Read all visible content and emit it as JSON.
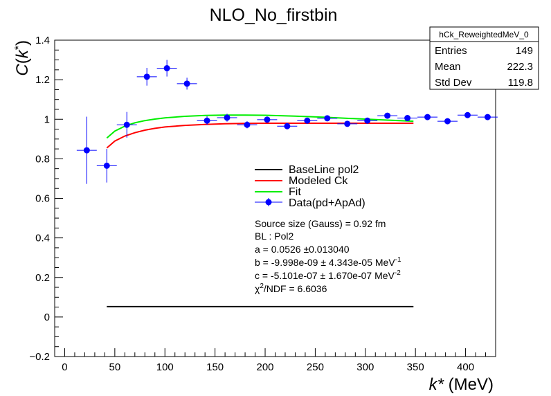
{
  "chart_data": {
    "type": "scatter",
    "title": "NLO_No_firstbin",
    "xlabel": {
      "italic": "k*",
      "rest": " (MeV)"
    },
    "ylabel": {
      "italic": "C",
      "open": "(",
      "italic2": "k",
      "sup": "*",
      "close": ")"
    },
    "xlim": [
      -10,
      430
    ],
    "ylim": [
      -0.2,
      1.4
    ],
    "x_ticks": [
      0,
      50,
      100,
      150,
      200,
      250,
      300,
      350,
      400
    ],
    "y_ticks": [
      -0.2,
      0,
      0.2,
      0.4,
      0.6,
      0.8,
      1,
      1.2,
      1.4
    ],
    "x_tick_labels": [
      "0",
      "50",
      "100",
      "150",
      "200",
      "250",
      "300",
      "350",
      "400"
    ],
    "y_tick_labels": [
      "−0.2",
      "0",
      "0.2",
      "0.4",
      "0.6",
      "0.8",
      "1",
      "1.2",
      "1.4"
    ],
    "grid": false,
    "data_points": [
      {
        "x": 22,
        "y": 0.843,
        "xerr": 10,
        "yerr": 0.17
      },
      {
        "x": 42,
        "y": 0.765,
        "xerr": 10,
        "yerr": 0.085
      },
      {
        "x": 62,
        "y": 0.972,
        "xerr": 10,
        "yerr": 0.065
      },
      {
        "x": 82,
        "y": 1.215,
        "xerr": 10,
        "yerr": 0.045
      },
      {
        "x": 102,
        "y": 1.258,
        "xerr": 10,
        "yerr": 0.042
      },
      {
        "x": 122,
        "y": 1.18,
        "xerr": 10,
        "yerr": 0.03
      },
      {
        "x": 142,
        "y": 0.993,
        "xerr": 10,
        "yerr": 0.022
      },
      {
        "x": 162,
        "y": 1.008,
        "xerr": 10,
        "yerr": 0.02
      },
      {
        "x": 182,
        "y": 0.972,
        "xerr": 10,
        "yerr": 0.018
      },
      {
        "x": 202,
        "y": 0.998,
        "xerr": 10,
        "yerr": 0.016
      },
      {
        "x": 222,
        "y": 0.965,
        "xerr": 10,
        "yerr": 0.016
      },
      {
        "x": 242,
        "y": 0.993,
        "xerr": 10,
        "yerr": 0.014
      },
      {
        "x": 262,
        "y": 1.005,
        "xerr": 10,
        "yerr": 0.013
      },
      {
        "x": 282,
        "y": 0.977,
        "xerr": 10,
        "yerr": 0.012
      },
      {
        "x": 302,
        "y": 0.993,
        "xerr": 10,
        "yerr": 0.012
      },
      {
        "x": 322,
        "y": 1.018,
        "xerr": 10,
        "yerr": 0.011
      },
      {
        "x": 342,
        "y": 1.006,
        "xerr": 10,
        "yerr": 0.011
      },
      {
        "x": 362,
        "y": 1.011,
        "xerr": 10,
        "yerr": 0.01
      },
      {
        "x": 382,
        "y": 0.99,
        "xerr": 10,
        "yerr": 0.01
      },
      {
        "x": 402,
        "y": 1.021,
        "xerr": 10,
        "yerr": 0.01
      },
      {
        "x": 422,
        "y": 1.011,
        "xerr": 10,
        "yerr": 0.01
      }
    ],
    "series": [
      {
        "name": "BaseLine pol2",
        "color": "#000000",
        "x": [
          42,
          100,
          150,
          200,
          250,
          300,
          348
        ],
        "y": [
          0.0526,
          0.0526,
          0.0526,
          0.0526,
          0.0526,
          0.0526,
          0.0526
        ]
      },
      {
        "name": "Modeled Ck",
        "color": "#ff0000",
        "x": [
          42,
          50,
          60,
          70,
          80,
          90,
          100,
          120,
          140,
          160,
          180,
          200,
          230,
          260,
          290,
          320,
          348
        ],
        "y": [
          0.855,
          0.89,
          0.915,
          0.932,
          0.945,
          0.954,
          0.961,
          0.969,
          0.974,
          0.977,
          0.979,
          0.98,
          0.98,
          0.98,
          0.98,
          0.98,
          0.98
        ]
      },
      {
        "name": "Fit",
        "color": "#00ee00",
        "x": [
          42,
          50,
          60,
          70,
          80,
          90,
          100,
          120,
          140,
          160,
          180,
          200,
          230,
          260,
          290,
          320,
          348
        ],
        "y": [
          0.905,
          0.94,
          0.965,
          0.982,
          0.993,
          1.001,
          1.007,
          1.015,
          1.019,
          1.021,
          1.021,
          1.02,
          1.016,
          1.01,
          1.003,
          0.996,
          0.99
        ]
      }
    ],
    "legend": {
      "placement": "center",
      "entries": [
        {
          "label": "BaseLine pol2",
          "style": "line",
          "color": "#000000"
        },
        {
          "label": "Modeled Ck",
          "style": "line",
          "color": "#ff0000"
        },
        {
          "label": "Fit",
          "style": "line",
          "color": "#00ee00"
        },
        {
          "label": "Data(pd+ApAd)",
          "style": "marker",
          "color": "#0000ff"
        }
      ]
    },
    "annotations": {
      "source": "Source size (Gauss) = 0.92 fm",
      "bl": "BL : Pol2",
      "a": "a =  0.0526 ±0.013040",
      "b": "b =  -9.998e-09 ± 4.343e-05 MeV",
      "b_sup": "-1",
      "c": "c =  -5.101e-07 ± 1.670e-07 MeV",
      "c_sup": "-2",
      "chi_pre": "χ",
      "chi_sup": "2",
      "chi_post": "/NDF =  6.6036"
    },
    "stats_box": {
      "title": "hCk_ReweightedMeV_0",
      "rows": [
        {
          "label": "Entries",
          "value": "149"
        },
        {
          "label": "Mean",
          "value": "222.3"
        },
        {
          "label": "Std Dev",
          "value": "119.8"
        }
      ]
    },
    "colors": {
      "data": "#0000ff",
      "axis": "#000000",
      "background": "#ffffff"
    }
  }
}
